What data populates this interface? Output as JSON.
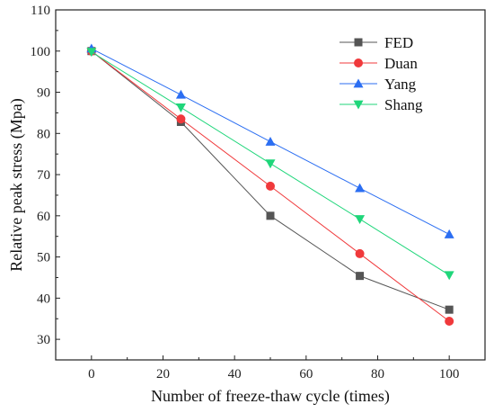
{
  "chart_data": {
    "type": "line",
    "xlabel": "Number of freeze-thaw cycle (times)",
    "ylabel": "Relative peak stress (Mpa)",
    "xlim": [
      -10,
      110
    ],
    "ylim": [
      25,
      110
    ],
    "xticks": [
      0,
      20,
      40,
      60,
      80,
      100
    ],
    "yticks": [
      30,
      40,
      50,
      60,
      70,
      80,
      90,
      100,
      110
    ],
    "legend_position": "top-right",
    "grid": false,
    "x": [
      0,
      25,
      50,
      75,
      100
    ],
    "series": [
      {
        "name": "FED",
        "color": "#555555",
        "marker": "square",
        "values": [
          100,
          82.8,
          60.0,
          45.4,
          37.2
        ]
      },
      {
        "name": "Duan",
        "color": "#f0393b",
        "marker": "circle",
        "values": [
          100,
          83.5,
          67.2,
          50.8,
          34.4
        ]
      },
      {
        "name": "Yang",
        "color": "#2b6ef2",
        "marker": "triangle-up",
        "values": [
          100.6,
          89.4,
          78.0,
          66.7,
          55.5
        ]
      },
      {
        "name": "Shang",
        "color": "#1fd67a",
        "marker": "triangle-down",
        "values": [
          99.8,
          86.3,
          72.7,
          59.2,
          45.6
        ]
      }
    ]
  }
}
